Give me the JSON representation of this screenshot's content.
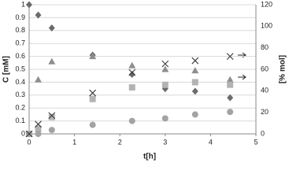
{
  "chart_data": {
    "type": "scatter",
    "xlabel": "t[h]",
    "ylabel": "C [mM]",
    "y2label": "[% mol]",
    "xlim": [
      0,
      5
    ],
    "xticks": [
      0,
      1,
      2,
      3,
      4,
      5
    ],
    "ylim": [
      0,
      1
    ],
    "yticks": [
      0,
      0.1,
      0.2,
      0.3,
      0.4,
      0.5,
      0.6,
      0.7,
      0.8,
      0.9,
      1
    ],
    "y2lim": [
      0,
      120
    ],
    "y2ticks": [
      0,
      20,
      40,
      60,
      80,
      100,
      120
    ],
    "grid": true,
    "series": [
      {
        "marker": "diamond",
        "color": "#6b6b6b",
        "x": [
          0,
          0.2,
          0.5,
          1.4,
          2.27,
          3,
          3.66,
          4.43
        ],
        "values": [
          1.0,
          0.92,
          0.82,
          0.61,
          0.46,
          0.35,
          0.33,
          0.28
        ]
      },
      {
        "marker": "triangle",
        "color": "#8e8e8e",
        "x": [
          0,
          0.2,
          0.5,
          1.4,
          2.27,
          3,
          3.66,
          4.43
        ],
        "values": [
          0,
          0.42,
          0.56,
          0.6,
          0.53,
          0.5,
          0.49,
          0.42
        ]
      },
      {
        "marker": "square",
        "color": "#b3b3b3",
        "x": [
          0,
          0.2,
          0.5,
          1.4,
          2.27,
          3,
          3.66,
          4.43
        ],
        "values": [
          0,
          0.04,
          0.13,
          0.27,
          0.36,
          0.38,
          0.4,
          0.38
        ]
      },
      {
        "marker": "circle",
        "color": "#a3a3a3",
        "x": [
          0,
          0.2,
          0.5,
          1.4,
          2.27,
          3,
          3.66,
          4.43
        ],
        "values": [
          0,
          0.0,
          0.03,
          0.07,
          0.1,
          0.12,
          0.15,
          0.17
        ]
      },
      {
        "marker": "x",
        "color": "#3a3a3a",
        "axis": "y2",
        "x": [
          0,
          0.2,
          0.5,
          1.4,
          2.27,
          3,
          3.66,
          4.43
        ],
        "values": [
          0,
          9,
          17,
          38,
          57,
          65,
          68,
          72
        ]
      }
    ]
  }
}
